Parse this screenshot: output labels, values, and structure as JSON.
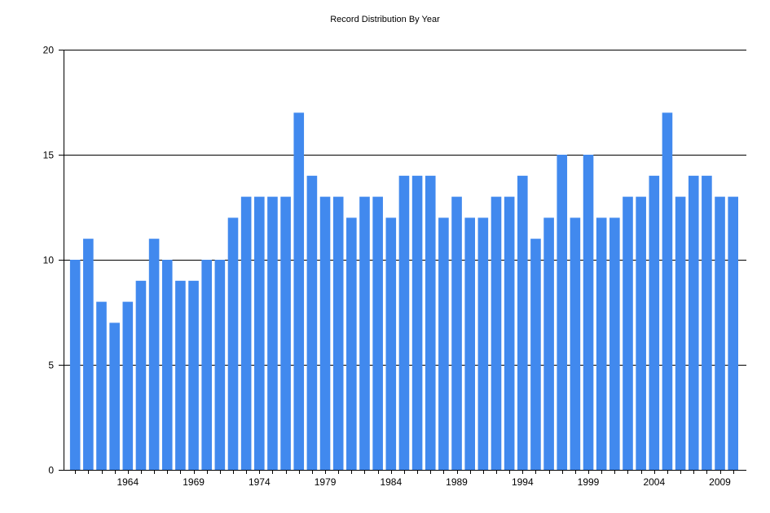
{
  "chart_data": {
    "type": "bar",
    "title": "Record Distribution By Year",
    "xlabel": "",
    "ylabel": "",
    "ylim": [
      0,
      20
    ],
    "yticks": [
      0,
      5,
      10,
      15,
      20
    ],
    "grid": "horizontal",
    "bar_color": "#4189ee",
    "x": [
      1960,
      1961,
      1962,
      1963,
      1964,
      1965,
      1966,
      1967,
      1968,
      1969,
      1970,
      1971,
      1972,
      1973,
      1974,
      1975,
      1976,
      1977,
      1978,
      1979,
      1980,
      1981,
      1982,
      1983,
      1984,
      1985,
      1986,
      1987,
      1988,
      1989,
      1990,
      1991,
      1992,
      1993,
      1994,
      1995,
      1996,
      1997,
      1998,
      1999,
      2000,
      2001,
      2002,
      2003,
      2004,
      2005,
      2006,
      2007,
      2008,
      2009,
      2010
    ],
    "values": [
      10,
      11,
      8,
      7,
      8,
      9,
      11,
      10,
      9,
      9,
      10,
      10,
      12,
      13,
      13,
      13,
      13,
      17,
      14,
      13,
      13,
      12,
      13,
      13,
      12,
      14,
      14,
      14,
      12,
      13,
      12,
      12,
      13,
      13,
      14,
      11,
      12,
      15,
      12,
      15,
      12,
      12,
      13,
      13,
      14,
      17,
      13,
      14,
      14,
      13,
      13
    ],
    "xtick_labels": [
      "1964",
      "1969",
      "1974",
      "1979",
      "1984",
      "1989",
      "1994",
      "1999",
      "2004",
      "2009"
    ]
  }
}
